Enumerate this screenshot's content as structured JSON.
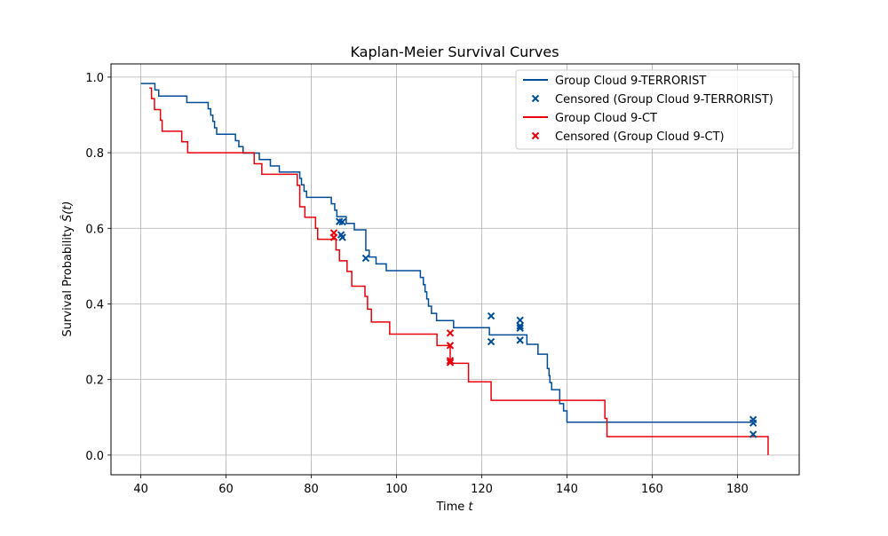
{
  "chart_data": {
    "type": "line",
    "title": "Kaplan-Meier Survival Curves",
    "xlabel_main": "Time ",
    "xlabel_var": "t",
    "ylabel_main": "Survival Probability ",
    "ylabel_var": "Ŝ(t)",
    "xlim": [
      33,
      194.5
    ],
    "ylim": [
      -0.052,
      1.035
    ],
    "xticks": [
      40,
      60,
      80,
      100,
      120,
      140,
      160,
      180
    ],
    "yticks": [
      0.0,
      0.2,
      0.4,
      0.6,
      0.8,
      1.0
    ],
    "ytick_labels": [
      "0.0",
      "0.2",
      "0.4",
      "0.6",
      "0.8",
      "1.0"
    ],
    "grid": true,
    "legend_position": "top-right",
    "series": [
      {
        "name": "Group Cloud 9-TERRORIST",
        "kind": "step",
        "color": "#004c99",
        "x": [
          40,
          43.3,
          44.2,
          50.8,
          55.8,
          56.4,
          56.9,
          57.3,
          57.8,
          58.5,
          62.2,
          63.0,
          64.0,
          67.8,
          70.4,
          72.5,
          77.3,
          77.7,
          78.3,
          78.9,
          84.7,
          85.5,
          86.0,
          88.2,
          90.1,
          92.8,
          93.6,
          95.2,
          97.6,
          105.6,
          106.3,
          106.7,
          107.1,
          107.5,
          108.2,
          109.4,
          113.4,
          121.8,
          129.2,
          130.6,
          133.2,
          135.4,
          135.8,
          136.0,
          136.4,
          138.3,
          139.2,
          140.0,
          183.7
        ],
        "y": [
          0.983,
          0.966,
          0.95,
          0.933,
          0.916,
          0.899,
          0.883,
          0.866,
          0.849,
          0.849,
          0.832,
          0.816,
          0.799,
          0.782,
          0.765,
          0.749,
          0.732,
          0.715,
          0.698,
          0.682,
          0.665,
          0.648,
          0.631,
          0.613,
          0.596,
          0.542,
          0.524,
          0.506,
          0.488,
          0.47,
          0.451,
          0.432,
          0.413,
          0.394,
          0.375,
          0.356,
          0.337,
          0.318,
          0.318,
          0.293,
          0.267,
          0.229,
          0.21,
          0.192,
          0.173,
          0.136,
          0.117,
          0.087,
          0.087
        ],
        "end_x": 183.7
      },
      {
        "name": "Group Cloud 9-CT",
        "kind": "step",
        "color": "#e8000b",
        "x": [
          42.0,
          42.5,
          43.2,
          44.6,
          45.0,
          49.6,
          51.0,
          66.6,
          68.4,
          76.7,
          77.3,
          78.5,
          81.0,
          81.5,
          85.8,
          86.6,
          88.4,
          89.5,
          92.6,
          93.2,
          94.1,
          98.4,
          109.5,
          112.6,
          116.9,
          122.2,
          148.9,
          149.4,
          187.2
        ],
        "y": [
          0.971,
          0.943,
          0.914,
          0.886,
          0.857,
          0.829,
          0.8,
          0.771,
          0.743,
          0.714,
          0.657,
          0.629,
          0.6,
          0.571,
          0.543,
          0.514,
          0.486,
          0.447,
          0.42,
          0.386,
          0.352,
          0.32,
          0.29,
          0.243,
          0.194,
          0.145,
          0.097,
          0.049,
          0.0
        ],
        "end_x": 187.2
      }
    ],
    "censored": [
      {
        "name": "Censored (Group Cloud 9-TERRORIST)",
        "color": "#004c99",
        "points": [
          [
            86.6,
            0.618
          ],
          [
            87.3,
            0.617
          ],
          [
            87.0,
            0.583
          ],
          [
            87.3,
            0.576
          ],
          [
            92.8,
            0.521
          ],
          [
            122.2,
            0.368
          ],
          [
            122.2,
            0.3
          ],
          [
            129.0,
            0.357
          ],
          [
            129.0,
            0.342
          ],
          [
            129.0,
            0.336
          ],
          [
            129.0,
            0.304
          ],
          [
            183.7,
            0.094
          ],
          [
            183.7,
            0.085
          ],
          [
            183.7,
            0.055
          ]
        ]
      },
      {
        "name": "Censored (Group Cloud 9-CT)",
        "color": "#e8000b",
        "points": [
          [
            85.3,
            0.588
          ],
          [
            85.3,
            0.576
          ],
          [
            112.6,
            0.323
          ],
          [
            112.6,
            0.29
          ],
          [
            112.6,
            0.25
          ],
          [
            112.6,
            0.245
          ]
        ]
      }
    ],
    "legend": [
      {
        "label": "Group Cloud 9-TERRORIST",
        "marker": "line",
        "color": "#004c99"
      },
      {
        "label": "Censored (Group Cloud 9-TERRORIST)",
        "marker": "x",
        "color": "#004c99"
      },
      {
        "label": "Group Cloud 9-CT",
        "marker": "line",
        "color": "#e8000b"
      },
      {
        "label": "Censored (Group Cloud 9-CT)",
        "marker": "x",
        "color": "#e8000b"
      }
    ]
  }
}
